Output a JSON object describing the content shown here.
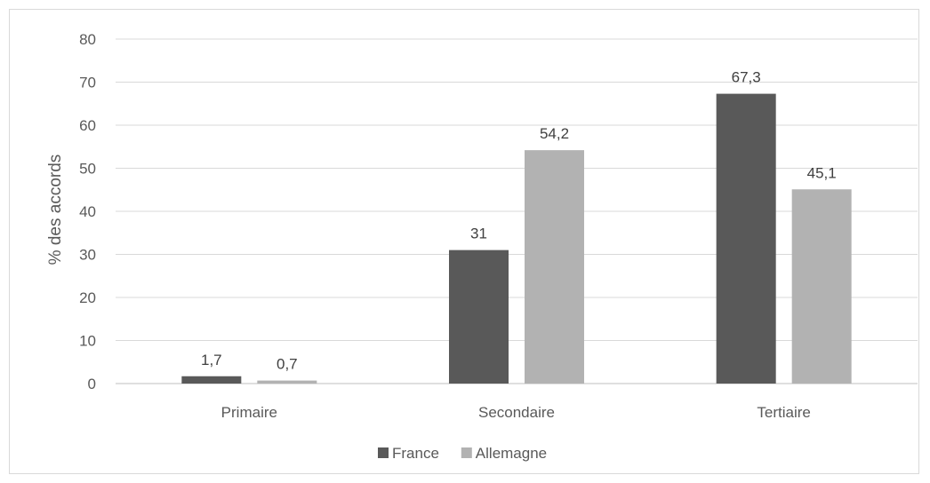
{
  "chart_data": {
    "type": "bar",
    "categories": [
      "Primaire",
      "Secondaire",
      "Tertiaire"
    ],
    "series": [
      {
        "name": "France",
        "values": [
          1.7,
          31,
          67.3
        ],
        "labels": [
          "1,7",
          "31",
          "67,3"
        ],
        "color": "#595959"
      },
      {
        "name": "Allemagne",
        "values": [
          0.7,
          54.2,
          45.1
        ],
        "labels": [
          "0,7",
          "54,2",
          "45,1"
        ],
        "color": "#b2b2b2"
      }
    ],
    "ylabel": "% des accords",
    "ylim": [
      0,
      80
    ],
    "yticks": [
      0,
      10,
      20,
      30,
      40,
      50,
      60,
      70,
      80
    ],
    "grid": true,
    "legend_position": "bottom"
  }
}
